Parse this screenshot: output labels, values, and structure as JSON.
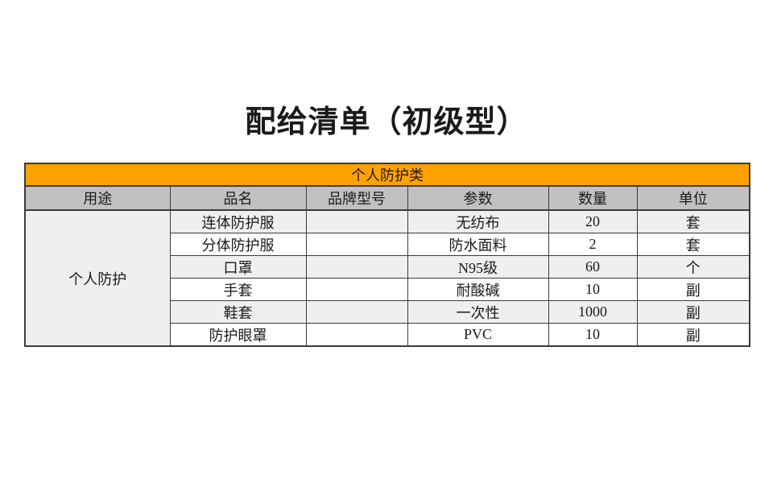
{
  "page": {
    "title": "配给清单（初级型）"
  },
  "table": {
    "category_header": "个人防护类",
    "columns": [
      "用途",
      "品名",
      "品牌型号",
      "参数",
      "数量",
      "单位"
    ],
    "group_label": "个人防护",
    "rows": [
      {
        "name": "连体防护服",
        "brand": "",
        "param": "无纺布",
        "qty": "20",
        "unit": "套"
      },
      {
        "name": "分体防护服",
        "brand": "",
        "param": "防水面料",
        "qty": "2",
        "unit": "套"
      },
      {
        "name": "口罩",
        "brand": "",
        "param": "N95级",
        "qty": "60",
        "unit": "个"
      },
      {
        "name": "手套",
        "brand": "",
        "param": "耐酸碱",
        "qty": "10",
        "unit": "副"
      },
      {
        "name": "鞋套",
        "brand": "",
        "param": "一次性",
        "qty": "1000",
        "unit": "副"
      },
      {
        "name": "防护眼罩",
        "brand": "",
        "param": "PVC",
        "qty": "10",
        "unit": "副"
      }
    ],
    "colors": {
      "category_bg": "#ffa200",
      "header_bg": "#c1c1c1",
      "stripe_bg": "#efefef",
      "border": "#3b3b3b"
    }
  }
}
